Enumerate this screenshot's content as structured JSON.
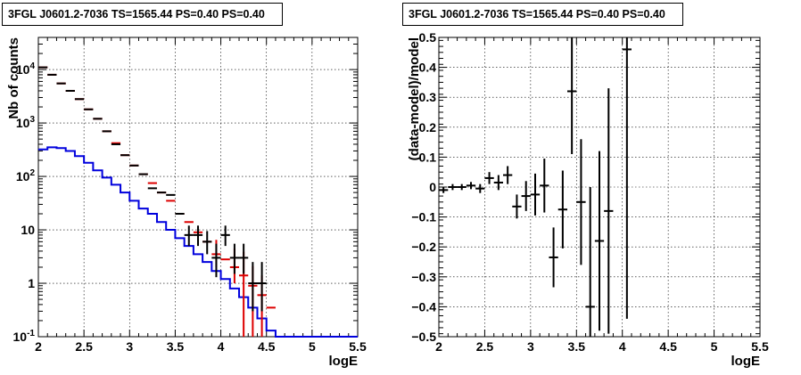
{
  "chart_data": [
    {
      "type": "line",
      "title": "3FGL J0601.2-7036 TS=1565.44 PS=0.40 PS=0.40",
      "xlabel": "logE",
      "ylabel": "Nb of counts",
      "xlim": [
        2,
        5.5
      ],
      "ylim": [
        0.1,
        40000
      ],
      "yscale": "log",
      "grid": true,
      "x_ticks": [
        "2",
        "2.5",
        "3",
        "3.5",
        "4",
        "4.5",
        "5",
        "5.5"
      ],
      "y_ticks": [
        "10^-1",
        "1",
        "10",
        "10^2",
        "10^3",
        "10^4"
      ],
      "colors": {
        "data": "#000000",
        "model_points": "#dd0000",
        "model_hist": "#0000dd"
      },
      "series": [
        {
          "kind": "model-histogram",
          "color": "#0000dd",
          "bin_edges": [
            2.0,
            2.1,
            2.2,
            2.3,
            2.4,
            2.5,
            2.6,
            2.7,
            2.8,
            2.9,
            3.0,
            3.1,
            3.2,
            3.3,
            3.4,
            3.5,
            3.6,
            3.7,
            3.8,
            3.9,
            4.0,
            4.1,
            4.2,
            4.3,
            4.4,
            4.5,
            4.6,
            4.7,
            4.8,
            4.9,
            5.0,
            5.1,
            5.2,
            5.3,
            5.4,
            5.5
          ],
          "values": [
            320,
            350,
            340,
            300,
            240,
            180,
            130,
            95,
            70,
            50,
            35,
            25,
            20,
            14,
            10,
            7,
            5,
            3.5,
            2.5,
            1.7,
            1.2,
            0.8,
            0.55,
            0.35,
            0.22,
            0.13,
            0.1,
            0.1,
            0.1,
            0.1,
            0.1,
            0.1,
            0.1,
            0.1,
            0.1
          ]
        },
        {
          "kind": "model-points",
          "color": "#dd0000",
          "x": [
            2.05,
            2.15,
            2.25,
            2.35,
            2.45,
            2.55,
            2.65,
            2.75,
            2.85,
            2.95,
            3.05,
            3.15,
            3.25,
            3.35,
            3.45,
            3.55,
            3.65,
            3.75,
            3.85,
            3.95,
            4.05,
            4.15,
            4.25,
            4.35,
            4.45,
            4.55
          ],
          "y": [
            11000,
            8000,
            5500,
            4000,
            2800,
            1800,
            1200,
            700,
            420,
            250,
            160,
            110,
            75,
            50,
            35,
            20,
            14,
            9,
            6,
            3.5,
            2.8,
            2,
            1.4,
            0.9,
            0.6,
            0.35
          ],
          "y_err_low": [
            0,
            0,
            0,
            0,
            0,
            0,
            0,
            0,
            0,
            0,
            0,
            0,
            0,
            0,
            0,
            0,
            0,
            0,
            0,
            1.5,
            0,
            1,
            1.3,
            0.8,
            0.5,
            0
          ],
          "y_err_high": [
            0,
            0,
            0,
            0,
            0,
            0,
            0,
            0,
            0,
            0,
            0,
            0,
            0,
            0,
            0,
            0,
            0,
            0,
            0,
            3,
            0,
            2.5,
            2.5,
            1.2,
            0.8,
            0
          ]
        },
        {
          "kind": "data-points",
          "color": "#000000",
          "x": [
            2.05,
            2.15,
            2.25,
            2.35,
            2.45,
            2.55,
            2.65,
            2.75,
            2.85,
            2.95,
            3.05,
            3.15,
            3.25,
            3.35,
            3.45,
            3.55,
            3.65,
            3.75,
            3.85,
            3.95,
            4.05,
            4.15,
            4.25,
            4.35,
            4.45
          ],
          "y": [
            11000,
            8000,
            5500,
            4000,
            2800,
            1800,
            1200,
            700,
            400,
            250,
            160,
            110,
            60,
            50,
            45,
            20,
            8,
            8,
            6,
            3,
            8,
            3,
            3,
            1,
            1
          ],
          "y_err_low": [
            0,
            0,
            0,
            0,
            0,
            0,
            0,
            0,
            0,
            0,
            0,
            0,
            0,
            0,
            0,
            0,
            3,
            3,
            2.5,
            1.7,
            3,
            1.5,
            1.5,
            0.7,
            0.7
          ],
          "y_err_high": [
            0,
            0,
            0,
            0,
            0,
            0,
            0,
            0,
            0,
            0,
            0,
            0,
            0,
            0,
            0,
            0,
            4,
            4,
            3.5,
            2.5,
            4,
            2.5,
            2.5,
            1.5,
            1.5
          ]
        }
      ]
    },
    {
      "type": "scatter",
      "title": "3FGL J0601.2-7036 TS=1565.44 PS=0.40 PS=0.40",
      "xlabel": "logE",
      "ylabel": "(data-model)/model",
      "xlim": [
        2,
        5.5
      ],
      "ylim": [
        -0.5,
        0.5
      ],
      "grid": true,
      "x_ticks": [
        "2",
        "2.5",
        "3",
        "3.5",
        "4",
        "4.5",
        "5",
        "5.5"
      ],
      "y_ticks": [
        "-0.5",
        "-0.4",
        "-0.3",
        "-0.2",
        "-0.1",
        "0",
        "0.1",
        "0.2",
        "0.3",
        "0.4",
        "0.5"
      ],
      "series": [
        {
          "kind": "residuals",
          "color": "#000000",
          "x": [
            2.05,
            2.15,
            2.25,
            2.35,
            2.45,
            2.55,
            2.65,
            2.75,
            2.85,
            2.95,
            3.05,
            3.15,
            3.25,
            3.35,
            3.45,
            3.55,
            3.65,
            3.75,
            3.85,
            4.05
          ],
          "y": [
            -0.01,
            0,
            0,
            0.005,
            -0.005,
            0.03,
            0.015,
            0.04,
            -0.065,
            -0.03,
            -0.025,
            0.005,
            -0.235,
            -0.075,
            0.32,
            -0.05,
            -0.4,
            -0.18,
            -0.08,
            0.46
          ],
          "y_err": [
            0.01,
            0.01,
            0.01,
            0.012,
            0.015,
            0.02,
            0.025,
            0.03,
            0.04,
            0.05,
            0.07,
            0.09,
            0.1,
            0.13,
            0.21,
            0.21,
            0.4,
            0.3,
            0.41,
            0.9
          ]
        }
      ]
    }
  ]
}
